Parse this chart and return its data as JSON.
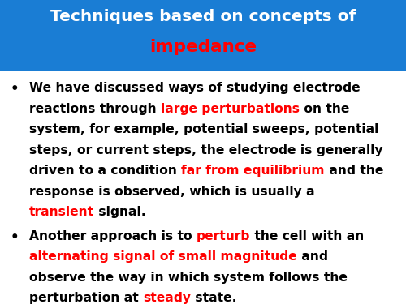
{
  "title_line1": "Techniques based on concepts of",
  "title_line2": "impedance",
  "title_bg_color": "#1a7dd4",
  "title_text_color1": "#ffffff",
  "title_text_color2": "#ff0000",
  "bullet1_lines": [
    [
      {
        "text": "We have discussed ways of studying electrode",
        "color": "#000000"
      }
    ],
    [
      {
        "text": "reactions through ",
        "color": "#000000"
      },
      {
        "text": "large perturbations",
        "color": "#ff0000"
      },
      {
        "text": " on the",
        "color": "#000000"
      }
    ],
    [
      {
        "text": "system, for example, potential sweeps, potential",
        "color": "#000000"
      }
    ],
    [
      {
        "text": "steps, or current steps, the electrode is generally",
        "color": "#000000"
      }
    ],
    [
      {
        "text": "driven to a condition ",
        "color": "#000000"
      },
      {
        "text": "far from equilibrium",
        "color": "#ff0000"
      },
      {
        "text": " and the",
        "color": "#000000"
      }
    ],
    [
      {
        "text": "response is observed, which is usually a",
        "color": "#000000"
      }
    ],
    [
      {
        "text": "transient",
        "color": "#ff0000"
      },
      {
        "text": " signal.",
        "color": "#000000"
      }
    ]
  ],
  "bullet2_lines": [
    [
      {
        "text": "Another approach is to ",
        "color": "#000000"
      },
      {
        "text": "perturb",
        "color": "#ff0000"
      },
      {
        "text": " the cell with an",
        "color": "#000000"
      }
    ],
    [
      {
        "text": "alternating signal of small magnitude",
        "color": "#ff0000"
      },
      {
        "text": " and",
        "color": "#000000"
      }
    ],
    [
      {
        "text": "observe the way in which system follows the",
        "color": "#000000"
      }
    ],
    [
      {
        "text": "perturbation at ",
        "color": "#000000"
      },
      {
        "text": "steady",
        "color": "#ff0000"
      },
      {
        "text": " state.",
        "color": "#000000"
      }
    ]
  ],
  "bg_color": "#ffffff",
  "font_size_title1": 14.5,
  "font_size_title2": 15.5,
  "font_size_body": 11.2,
  "bullet_char": "•"
}
